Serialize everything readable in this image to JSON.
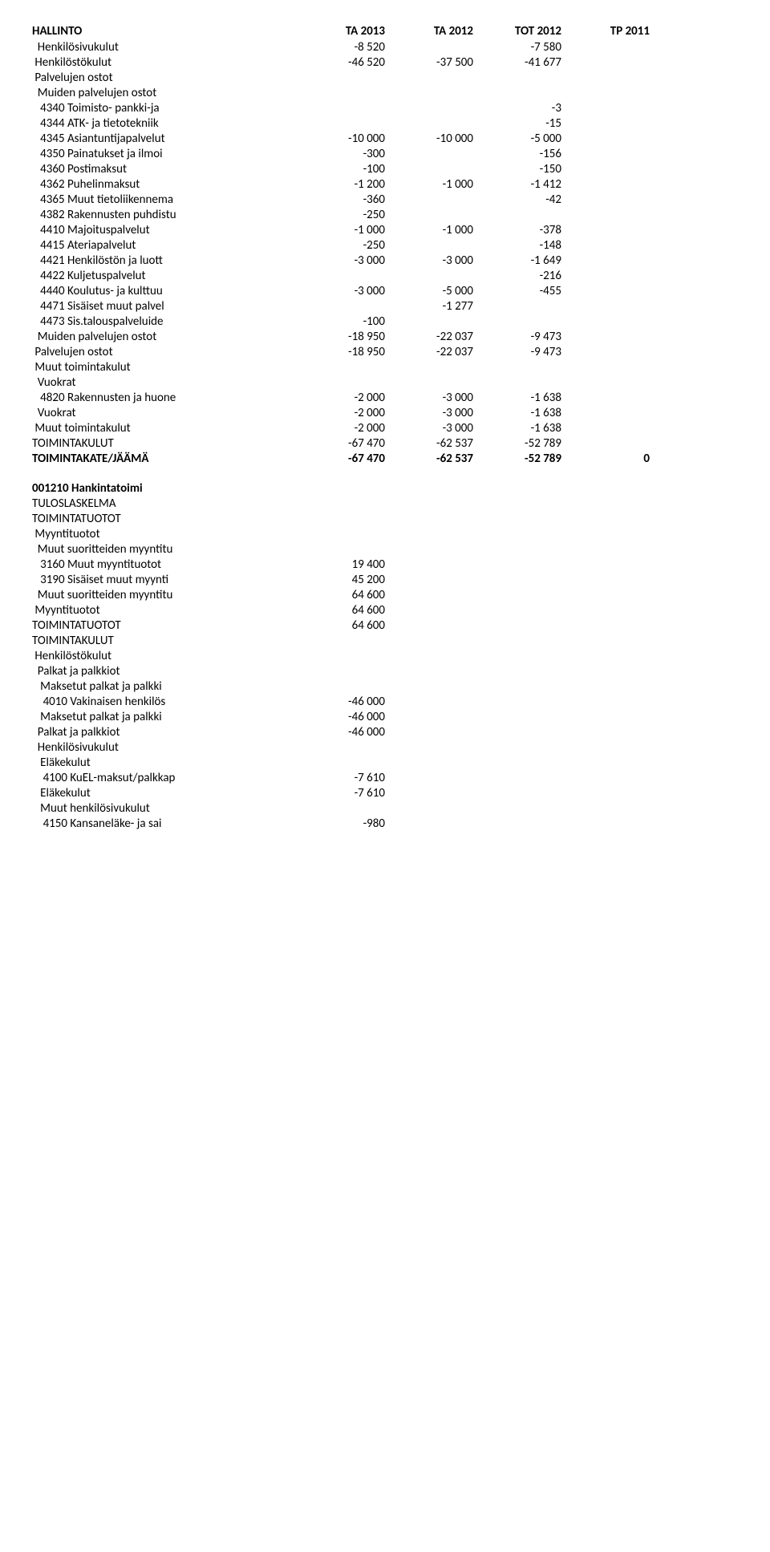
{
  "header": {
    "title": "HALLINTO",
    "cols": [
      "TA 2013",
      "TA 2012",
      "TOT 2012",
      "TP 2011"
    ]
  },
  "rows1": [
    {
      "label": "  Henkilösivukulut",
      "c1": "-8 520",
      "c2": "",
      "c3": "-7 580",
      "c4": "",
      "indent": 1
    },
    {
      "label": " Henkilöstökulut",
      "c1": "-46 520",
      "c2": "-37 500",
      "c3": "-41 677",
      "c4": "",
      "indent": 1
    },
    {
      "label": " Palvelujen ostot",
      "c1": "",
      "c2": "",
      "c3": "",
      "c4": "",
      "indent": 1
    },
    {
      "label": "  Muiden palvelujen ostot",
      "c1": "",
      "c2": "",
      "c3": "",
      "c4": "",
      "indent": 1
    },
    {
      "label": "   4340 Toimisto- pankki-ja",
      "c1": "",
      "c2": "",
      "c3": "-3",
      "c4": "",
      "indent": 1
    },
    {
      "label": "   4344 ATK- ja tietotekniik",
      "c1": "",
      "c2": "",
      "c3": "-15",
      "c4": "",
      "indent": 1
    },
    {
      "label": "   4345 Asiantuntijapalvelut",
      "c1": "-10 000",
      "c2": "-10 000",
      "c3": "-5 000",
      "c4": "",
      "indent": 1
    },
    {
      "label": "   4350 Painatukset ja ilmoi",
      "c1": "-300",
      "c2": "",
      "c3": "-156",
      "c4": "",
      "indent": 1
    },
    {
      "label": "   4360 Postimaksut",
      "c1": "-100",
      "c2": "",
      "c3": "-150",
      "c4": "",
      "indent": 1
    },
    {
      "label": "   4362 Puhelinmaksut",
      "c1": "-1 200",
      "c2": "-1 000",
      "c3": "-1 412",
      "c4": "",
      "indent": 1
    },
    {
      "label": "   4365 Muut tietoliikennema",
      "c1": "-360",
      "c2": "",
      "c3": "-42",
      "c4": "",
      "indent": 1
    },
    {
      "label": "   4382 Rakennusten puhdistu",
      "c1": "-250",
      "c2": "",
      "c3": "",
      "c4": "",
      "indent": 1
    },
    {
      "label": "   4410 Majoituspalvelut",
      "c1": "-1 000",
      "c2": "-1 000",
      "c3": "-378",
      "c4": "",
      "indent": 1
    },
    {
      "label": "   4415 Ateriapalvelut",
      "c1": "-250",
      "c2": "",
      "c3": "-148",
      "c4": "",
      "indent": 1
    },
    {
      "label": "   4421 Henkilöstön ja luott",
      "c1": "-3 000",
      "c2": "-3 000",
      "c3": "-1 649",
      "c4": "",
      "indent": 1
    },
    {
      "label": "   4422 Kuljetuspalvelut",
      "c1": "",
      "c2": "",
      "c3": "-216",
      "c4": "",
      "indent": 1
    },
    {
      "label": "   4440 Koulutus- ja kulttuu",
      "c1": "-3 000",
      "c2": "-5 000",
      "c3": "-455",
      "c4": "",
      "indent": 1
    },
    {
      "label": "   4471 Sisäiset muut palvel",
      "c1": "",
      "c2": "-1 277",
      "c3": "",
      "c4": "",
      "indent": 1
    },
    {
      "label": "   4473 Sis.talouspalveluide",
      "c1": "-100",
      "c2": "",
      "c3": "",
      "c4": "",
      "indent": 1
    },
    {
      "label": "  Muiden palvelujen ostot",
      "c1": "-18 950",
      "c2": "-22 037",
      "c3": "-9 473",
      "c4": "",
      "indent": 1
    },
    {
      "label": " Palvelujen ostot",
      "c1": "-18 950",
      "c2": "-22 037",
      "c3": "-9 473",
      "c4": "",
      "indent": 1
    },
    {
      "label": " Muut toimintakulut",
      "c1": "",
      "c2": "",
      "c3": "",
      "c4": "",
      "indent": 1
    },
    {
      "label": "  Vuokrat",
      "c1": "",
      "c2": "",
      "c3": "",
      "c4": "",
      "indent": 1
    },
    {
      "label": "   4820 Rakennusten ja huone",
      "c1": "-2 000",
      "c2": "-3 000",
      "c3": "-1 638",
      "c4": "",
      "indent": 1
    },
    {
      "label": "  Vuokrat",
      "c1": "-2 000",
      "c2": "-3 000",
      "c3": "-1 638",
      "c4": "",
      "indent": 1
    },
    {
      "label": " Muut toimintakulut",
      "c1": "-2 000",
      "c2": "-3 000",
      "c3": "-1 638",
      "c4": "",
      "indent": 1
    },
    {
      "label": "TOIMINTAKULUT",
      "c1": "-67 470",
      "c2": "-62 537",
      "c3": "-52 789",
      "c4": "",
      "indent": 0
    },
    {
      "label": "TOIMINTAKATE/JÄÄMÄ",
      "c1": "-67 470",
      "c2": "-62 537",
      "c3": "-52 789",
      "c4": "0",
      "indent": 0,
      "bold": true
    }
  ],
  "section2_title": "001210 Hankintatoimi",
  "rows2": [
    {
      "label": "TULOSLASKELMA",
      "c1": "",
      "c2": "",
      "c3": "",
      "c4": "",
      "indent": 0
    },
    {
      "label": "TOIMINTATUOTOT",
      "c1": "",
      "c2": "",
      "c3": "",
      "c4": "",
      "indent": 0
    },
    {
      "label": " Myyntituotot",
      "c1": "",
      "c2": "",
      "c3": "",
      "c4": "",
      "indent": 1
    },
    {
      "label": "  Muut suoritteiden myyntitu",
      "c1": "",
      "c2": "",
      "c3": "",
      "c4": "",
      "indent": 1
    },
    {
      "label": "   3160 Muut myyntituotot",
      "c1": "19 400",
      "c2": "",
      "c3": "",
      "c4": "",
      "indent": 1
    },
    {
      "label": "   3190 Sisäiset muut myynti",
      "c1": "45 200",
      "c2": "",
      "c3": "",
      "c4": "",
      "indent": 1
    },
    {
      "label": "  Muut suoritteiden myyntitu",
      "c1": "64 600",
      "c2": "",
      "c3": "",
      "c4": "",
      "indent": 1
    },
    {
      "label": " Myyntituotot",
      "c1": "64 600",
      "c2": "",
      "c3": "",
      "c4": "",
      "indent": 1
    },
    {
      "label": "TOIMINTATUOTOT",
      "c1": "64 600",
      "c2": "",
      "c3": "",
      "c4": "",
      "indent": 0
    },
    {
      "label": "TOIMINTAKULUT",
      "c1": "",
      "c2": "",
      "c3": "",
      "c4": "",
      "indent": 0
    },
    {
      "label": " Henkilöstökulut",
      "c1": "",
      "c2": "",
      "c3": "",
      "c4": "",
      "indent": 1
    },
    {
      "label": "  Palkat ja palkkiot",
      "c1": "",
      "c2": "",
      "c3": "",
      "c4": "",
      "indent": 1
    },
    {
      "label": "   Maksetut palkat ja palkki",
      "c1": "",
      "c2": "",
      "c3": "",
      "c4": "",
      "indent": 1
    },
    {
      "label": "    4010 Vakinaisen henkilös",
      "c1": "-46 000",
      "c2": "",
      "c3": "",
      "c4": "",
      "indent": 1
    },
    {
      "label": "   Maksetut palkat ja palkki",
      "c1": "-46 000",
      "c2": "",
      "c3": "",
      "c4": "",
      "indent": 1
    },
    {
      "label": "  Palkat ja palkkiot",
      "c1": "-46 000",
      "c2": "",
      "c3": "",
      "c4": "",
      "indent": 1
    },
    {
      "label": "  Henkilösivukulut",
      "c1": "",
      "c2": "",
      "c3": "",
      "c4": "",
      "indent": 1
    },
    {
      "label": "   Eläkekulut",
      "c1": "",
      "c2": "",
      "c3": "",
      "c4": "",
      "indent": 1
    },
    {
      "label": "    4100 KuEL-maksut/palkkap",
      "c1": "-7 610",
      "c2": "",
      "c3": "",
      "c4": "",
      "indent": 1
    },
    {
      "label": "   Eläkekulut",
      "c1": "-7 610",
      "c2": "",
      "c3": "",
      "c4": "",
      "indent": 1
    },
    {
      "label": "   Muut henkilösivukulut",
      "c1": "",
      "c2": "",
      "c3": "",
      "c4": "",
      "indent": 1
    },
    {
      "label": "    4150 Kansaneläke- ja sai",
      "c1": "-980",
      "c2": "",
      "c3": "",
      "c4": "",
      "indent": 1
    }
  ]
}
